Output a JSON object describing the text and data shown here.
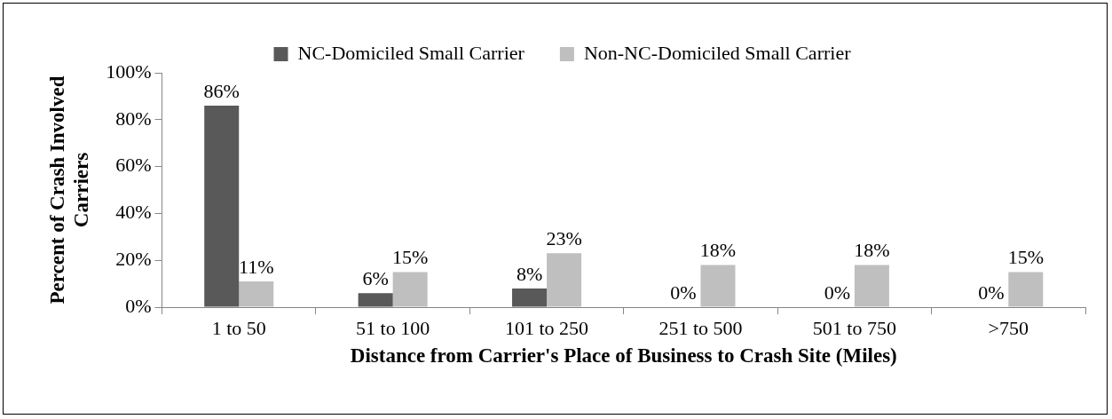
{
  "chart_data": {
    "type": "bar",
    "categories": [
      "1 to 50",
      "51 to 100",
      "101 to 250",
      "251 to 500",
      "501 to 750",
      ">750"
    ],
    "series": [
      {
        "name": "NC-Domiciled Small Carrier",
        "color": "#595959",
        "values": [
          86,
          6,
          8,
          0,
          0,
          0
        ],
        "value_labels": [
          "86%",
          "6%",
          "8%",
          "0%",
          "0%",
          "0%"
        ]
      },
      {
        "name": "Non-NC-Domiciled Small Carrier",
        "color": "#bfbfbf",
        "values": [
          11,
          15,
          23,
          18,
          18,
          15
        ],
        "value_labels": [
          "11%",
          "15%",
          "23%",
          "18%",
          "18%",
          "15%"
        ]
      }
    ],
    "xlabel": "Distance from Carrier's Place of Business to Crash Site (Miles)",
    "ylabel": "Percent of Crash Involved Carriers",
    "ylim": [
      0,
      100.0
    ],
    "yticks": [
      {
        "value": 0,
        "label": "0%"
      },
      {
        "value": 20,
        "label": "20%"
      },
      {
        "value": 40,
        "label": "40%"
      },
      {
        "value": 60,
        "label": "60%"
      },
      {
        "value": 80,
        "label": "80%"
      },
      {
        "value": 100,
        "label": "100%"
      }
    ],
    "grid": false,
    "legend": "top"
  }
}
